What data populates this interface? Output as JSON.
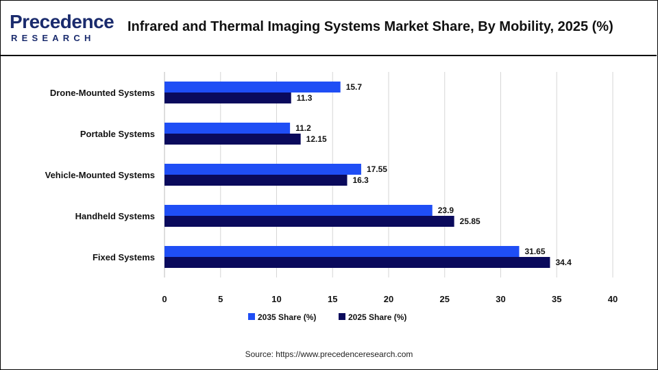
{
  "header": {
    "logo_top": "Precedence",
    "logo_bottom": "RESEARCH",
    "title": "Infrared and Thermal Imaging Systems Market Share, By Mobility, 2025 (%)"
  },
  "source": "Source: https://www.precedenceresearch.com",
  "chart_data": {
    "type": "bar",
    "orientation": "horizontal",
    "title": "Infrared and Thermal Imaging Systems Market Share, By Mobility, 2025 (%)",
    "xlabel": "",
    "ylabel": "",
    "xlim": [
      0,
      40
    ],
    "xticks": [
      0,
      5,
      10,
      15,
      20,
      25,
      30,
      35,
      40
    ],
    "grid": true,
    "legend_position": "bottom",
    "categories": [
      "Drone-Mounted Systems",
      "Portable Systems",
      "Vehicle-Mounted Systems",
      "Handheld Systems",
      "Fixed Systems"
    ],
    "series": [
      {
        "name": "2035 Share (%)",
        "color": "#1f4ef5",
        "values": [
          15.7,
          11.2,
          17.55,
          23.9,
          31.65
        ],
        "labels": [
          "15.7",
          "11.2",
          "17.55",
          "23.9",
          "31.65"
        ]
      },
      {
        "name": "2025 Share (%)",
        "color": "#0a0a5c",
        "values": [
          11.3,
          12.15,
          16.3,
          25.85,
          34.4
        ],
        "labels": [
          "11.3",
          "12.15",
          "16.3",
          "25.85",
          "34.4"
        ]
      }
    ]
  }
}
